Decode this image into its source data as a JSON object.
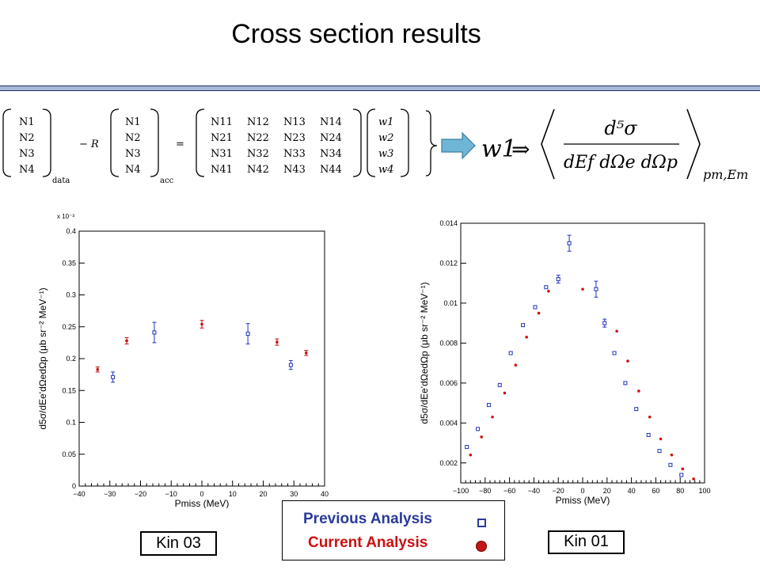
{
  "slide": {
    "title": "Cross section results"
  },
  "equation": {
    "lhs_data": [
      "N1",
      "N2",
      "N3",
      "N4"
    ],
    "lhs_data_sub": "data",
    "minus_r": "− R",
    "lhs_acc": [
      "N1",
      "N2",
      "N3",
      "N4"
    ],
    "lhs_acc_sub": "acc",
    "equals": "=",
    "matrix": [
      [
        "N11",
        "N12",
        "N13",
        "N14"
      ],
      [
        "N21",
        "N22",
        "N23",
        "N24"
      ],
      [
        "N31",
        "N32",
        "N33",
        "N34"
      ],
      [
        "N41",
        "N42",
        "N43",
        "N44"
      ]
    ],
    "weights": [
      "w1",
      "w2",
      "w3",
      "w4"
    ],
    "w1": "w1",
    "implies": "⇒",
    "numerator": "d⁵σ",
    "denominator": "dEf dΩe dΩp",
    "subscript": "pm,Em"
  },
  "legend": {
    "previous": "Previous Analysis",
    "current": "Current Analysis"
  },
  "kin_labels": {
    "left": "Kin 03",
    "right": "Kin 01"
  },
  "colors": {
    "previous": "#2233bb",
    "current": "#cc1111"
  },
  "chart_data": [
    {
      "type": "scatter",
      "title": "",
      "xlabel": "Pmiss (MeV)",
      "ylabel": "d5σ/dEe'dΩedΩp (μb sr⁻² MeV⁻¹)",
      "exponent_label": "x 10⁻³",
      "xlim": [
        -40,
        40
      ],
      "ylim": [
        0,
        0.4
      ],
      "xticks": [
        "−40",
        "−30",
        "−20",
        "−10",
        "0",
        "10",
        "20",
        "30",
        "40"
      ],
      "yticks": [
        "0",
        "0.05",
        "0.1",
        "0.15",
        "0.2",
        "0.25",
        "0.3",
        "0.35",
        "0.4"
      ],
      "series": [
        {
          "name": "Previous Analysis",
          "marker": "open-square",
          "points": [
            {
              "x": -29,
              "y": 0.171,
              "err": 0.008
            },
            {
              "x": -15.5,
              "y": 0.241,
              "err": 0.016
            },
            {
              "x": 15,
              "y": 0.239,
              "err": 0.016
            },
            {
              "x": 29,
              "y": 0.19,
              "err": 0.007
            }
          ]
        },
        {
          "name": "Current Analysis",
          "marker": "dot",
          "points": [
            {
              "x": -34,
              "y": 0.183,
              "err": 0.004
            },
            {
              "x": -24.5,
              "y": 0.228,
              "err": 0.005
            },
            {
              "x": 0,
              "y": 0.254,
              "err": 0.006
            },
            {
              "x": 24.5,
              "y": 0.226,
              "err": 0.005
            },
            {
              "x": 34,
              "y": 0.209,
              "err": 0.004
            }
          ]
        }
      ]
    },
    {
      "type": "scatter",
      "title": "",
      "xlabel": "Pmiss (MeV)",
      "ylabel": "d5σ/dEe'dΩedΩp (μb sr⁻² MeV⁻¹)",
      "xlim": [
        -100,
        100
      ],
      "ylim": [
        0.001,
        0.014
      ],
      "xticks": [
        "−100",
        "−80",
        "−60",
        "−40",
        "−20",
        "0",
        "20",
        "40",
        "60",
        "80",
        "100"
      ],
      "yticks": [
        "0.002",
        "0.004",
        "0.006",
        "0.008",
        "0.01",
        "0.012",
        "0.014"
      ],
      "series": [
        {
          "name": "Previous Analysis",
          "marker": "open-square",
          "points": [
            {
              "x": -95,
              "y": 0.0028,
              "err": 0
            },
            {
              "x": -86,
              "y": 0.0037,
              "err": 0
            },
            {
              "x": -77,
              "y": 0.0049,
              "err": 0
            },
            {
              "x": -68,
              "y": 0.0059,
              "err": 0
            },
            {
              "x": -59,
              "y": 0.0075,
              "err": 0
            },
            {
              "x": -49,
              "y": 0.0089,
              "err": 0
            },
            {
              "x": -39,
              "y": 0.0098,
              "err": 0
            },
            {
              "x": -30,
              "y": 0.0108,
              "err": 0
            },
            {
              "x": -20,
              "y": 0.0112,
              "err": 0.0002
            },
            {
              "x": -11,
              "y": 0.013,
              "err": 0.0004
            },
            {
              "x": 11,
              "y": 0.0107,
              "err": 0.0004
            },
            {
              "x": 18,
              "y": 0.009,
              "err": 0.0002
            },
            {
              "x": 26,
              "y": 0.0075,
              "err": 0
            },
            {
              "x": 35,
              "y": 0.006,
              "err": 0
            },
            {
              "x": 44,
              "y": 0.0047,
              "err": 0
            },
            {
              "x": 54,
              "y": 0.0034,
              "err": 0
            },
            {
              "x": 63,
              "y": 0.0026,
              "err": 0
            },
            {
              "x": 72,
              "y": 0.0019,
              "err": 0
            },
            {
              "x": 81,
              "y": 0.0014,
              "err": 0
            }
          ]
        },
        {
          "name": "Current Analysis",
          "marker": "dot",
          "points": [
            {
              "x": -92,
              "y": 0.0024,
              "err": 0
            },
            {
              "x": -83,
              "y": 0.0033,
              "err": 0
            },
            {
              "x": -74,
              "y": 0.0043,
              "err": 0
            },
            {
              "x": -64,
              "y": 0.0055,
              "err": 0
            },
            {
              "x": -55,
              "y": 0.0069,
              "err": 0
            },
            {
              "x": -46,
              "y": 0.0083,
              "err": 0
            },
            {
              "x": -36,
              "y": 0.0095,
              "err": 0
            },
            {
              "x": -28,
              "y": 0.0106,
              "err": 0
            },
            {
              "x": 0,
              "y": 0.0107,
              "err": 0
            },
            {
              "x": 28,
              "y": 0.0086,
              "err": 0
            },
            {
              "x": 37,
              "y": 0.0071,
              "err": 0
            },
            {
              "x": 46,
              "y": 0.0056,
              "err": 0
            },
            {
              "x": 55,
              "y": 0.0043,
              "err": 0
            },
            {
              "x": 64,
              "y": 0.0032,
              "err": 0
            },
            {
              "x": 73,
              "y": 0.0024,
              "err": 0
            },
            {
              "x": 82,
              "y": 0.0017,
              "err": 0
            },
            {
              "x": 91,
              "y": 0.0012,
              "err": 0
            }
          ]
        }
      ]
    }
  ]
}
